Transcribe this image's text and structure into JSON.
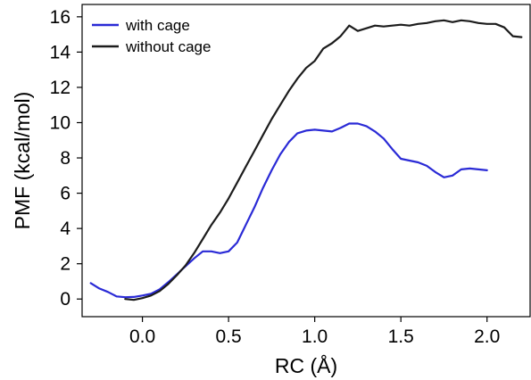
{
  "chart_data": {
    "type": "line",
    "title": "",
    "xlabel": "RC (Å)",
    "ylabel": "PMF (kcal/mol)",
    "xlim": [
      -0.35,
      2.25
    ],
    "ylim": [
      -1.0,
      16.7
    ],
    "xticks": [
      0.0,
      0.5,
      1.0,
      1.5,
      2.0
    ],
    "xtick_labels": [
      "0.0",
      "0.5",
      "1.0",
      "1.5",
      "2.0"
    ],
    "yticks": [
      0,
      2,
      4,
      6,
      8,
      10,
      12,
      14,
      16
    ],
    "ytick_labels": [
      "0",
      "2",
      "4",
      "6",
      "8",
      "10",
      "12",
      "14",
      "16"
    ],
    "grid": false,
    "legend_position": "top-left",
    "series": [
      {
        "name": "with cage",
        "color": "#2a2ad6",
        "x": [
          -0.3,
          -0.25,
          -0.2,
          -0.15,
          -0.1,
          -0.05,
          0.0,
          0.05,
          0.1,
          0.15,
          0.2,
          0.25,
          0.3,
          0.35,
          0.4,
          0.45,
          0.5,
          0.55,
          0.6,
          0.65,
          0.7,
          0.75,
          0.8,
          0.85,
          0.9,
          0.95,
          1.0,
          1.05,
          1.1,
          1.15,
          1.2,
          1.25,
          1.3,
          1.35,
          1.4,
          1.45,
          1.5,
          1.55,
          1.6,
          1.65,
          1.7,
          1.75,
          1.8,
          1.85,
          1.9,
          1.95,
          2.0
        ],
        "y": [
          0.9,
          0.6,
          0.4,
          0.15,
          0.1,
          0.12,
          0.2,
          0.3,
          0.55,
          0.95,
          1.4,
          1.85,
          2.3,
          2.7,
          2.7,
          2.6,
          2.7,
          3.2,
          4.2,
          5.2,
          6.3,
          7.3,
          8.2,
          8.9,
          9.4,
          9.55,
          9.6,
          9.55,
          9.5,
          9.7,
          9.95,
          9.95,
          9.8,
          9.5,
          9.1,
          8.5,
          7.95,
          7.85,
          7.75,
          7.55,
          7.2,
          6.9,
          7.0,
          7.35,
          7.4,
          7.35,
          7.3
        ]
      },
      {
        "name": "without cage",
        "color": "#1c1c1c",
        "x": [
          -0.1,
          -0.05,
          0.0,
          0.05,
          0.1,
          0.15,
          0.2,
          0.25,
          0.3,
          0.35,
          0.4,
          0.45,
          0.5,
          0.55,
          0.6,
          0.65,
          0.7,
          0.75,
          0.8,
          0.85,
          0.9,
          0.95,
          1.0,
          1.05,
          1.1,
          1.15,
          1.2,
          1.25,
          1.3,
          1.35,
          1.4,
          1.45,
          1.5,
          1.55,
          1.6,
          1.65,
          1.7,
          1.75,
          1.8,
          1.85,
          1.9,
          1.95,
          2.0,
          2.05,
          2.1,
          2.15,
          2.2
        ],
        "y": [
          0.0,
          -0.05,
          0.05,
          0.2,
          0.45,
          0.85,
          1.35,
          1.9,
          2.6,
          3.4,
          4.2,
          4.9,
          5.7,
          6.6,
          7.5,
          8.4,
          9.3,
          10.2,
          11.0,
          11.8,
          12.5,
          13.1,
          13.5,
          14.2,
          14.5,
          14.9,
          15.5,
          15.2,
          15.35,
          15.5,
          15.45,
          15.5,
          15.55,
          15.5,
          15.6,
          15.65,
          15.75,
          15.8,
          15.7,
          15.8,
          15.75,
          15.65,
          15.6,
          15.6,
          15.4,
          14.9,
          14.85
        ]
      }
    ]
  }
}
